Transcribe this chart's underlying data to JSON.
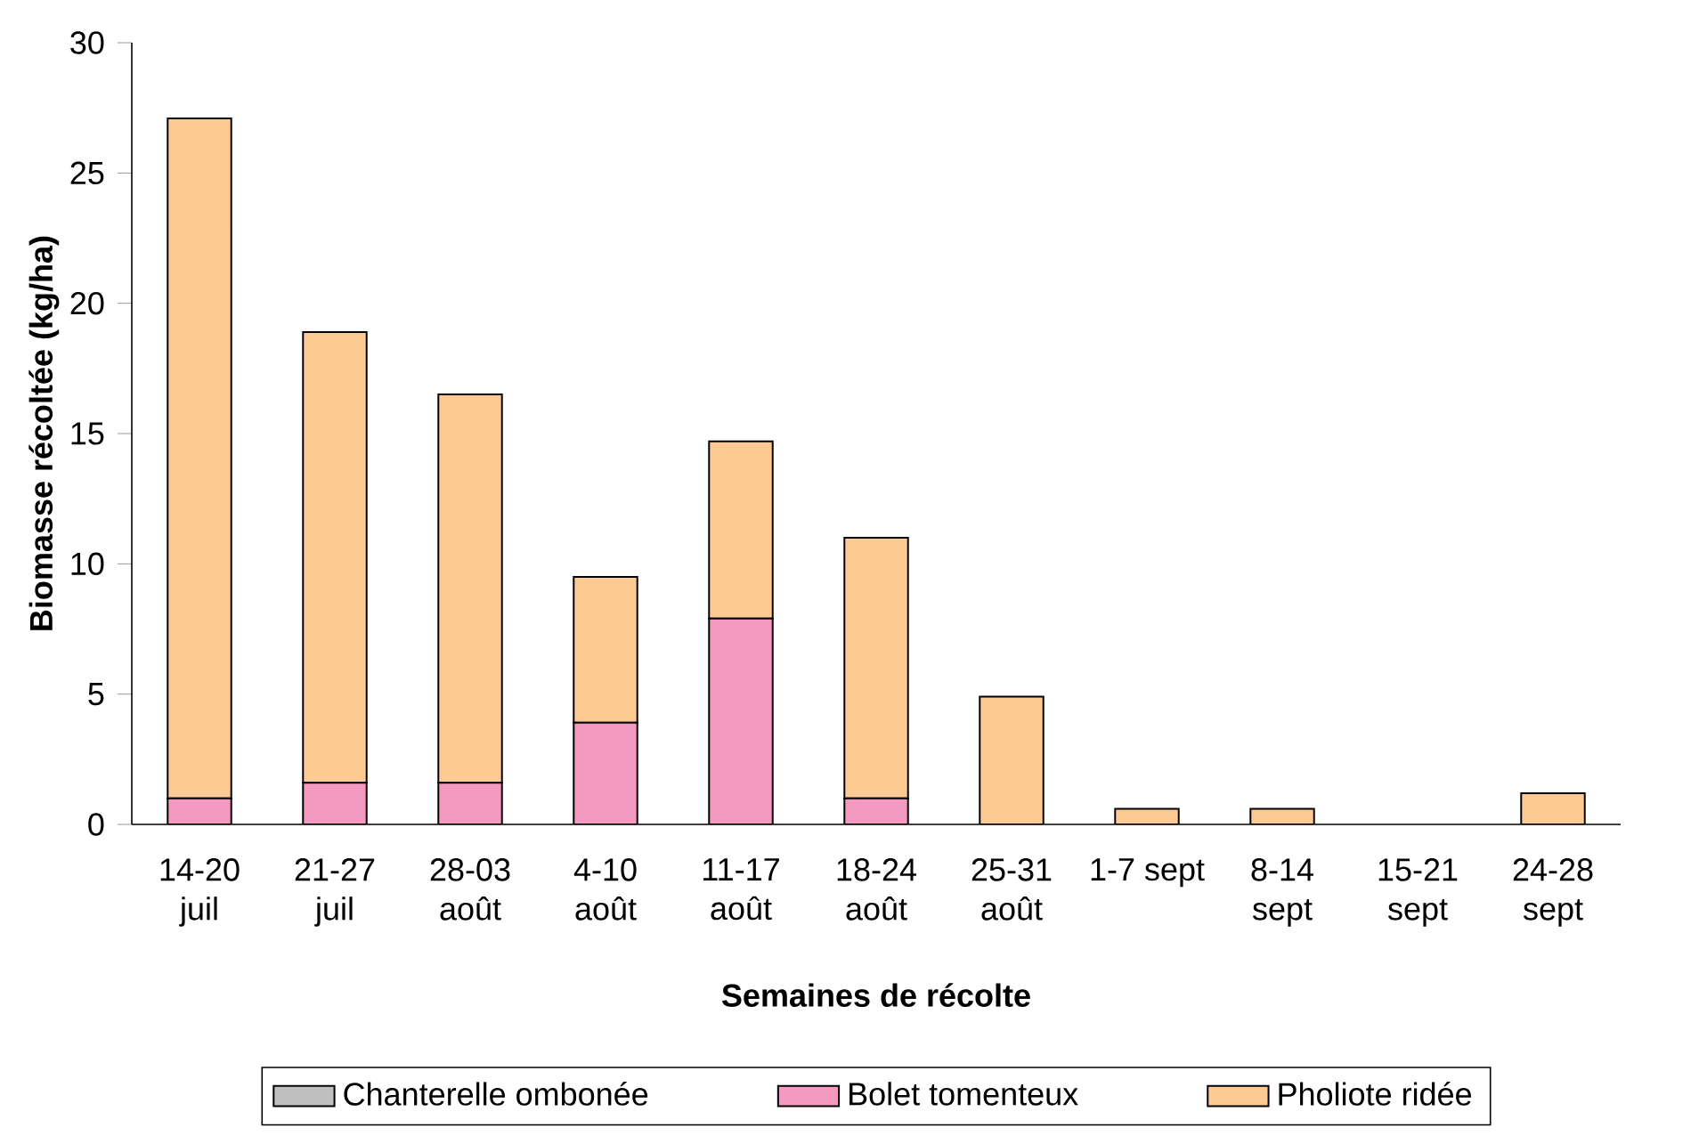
{
  "chart_data": {
    "type": "bar",
    "stacked": true,
    "xlabel": "Semaines de récolte",
    "ylabel": "Biomasse récoltée (kg/ha)",
    "categories": [
      "14-20 juil",
      "21-27 juil",
      "28-03 août",
      "4-10 août",
      "11-17 août",
      "18-24 août",
      "25-31 août",
      "1-7 sept",
      "8-14 sept",
      "15-21 sept",
      "24-28 sept"
    ],
    "series": [
      {
        "name": "Chanterelle ombonée",
        "color": "#c0c0c0",
        "values": [
          0,
          0,
          0,
          0,
          0,
          0,
          0,
          0,
          0,
          0,
          0
        ]
      },
      {
        "name": "Bolet tomenteux",
        "color": "#f49ac1",
        "values": [
          1.0,
          1.6,
          1.6,
          3.9,
          7.9,
          1.0,
          0,
          0,
          0,
          0,
          0
        ]
      },
      {
        "name": "Pholiote ridée",
        "color": "#fdca94",
        "values": [
          26.1,
          17.3,
          14.9,
          5.6,
          6.8,
          10.0,
          4.9,
          0.6,
          0.6,
          0,
          1.2
        ]
      }
    ],
    "ylim": [
      0,
      30
    ],
    "yticks": [
      0,
      5,
      10,
      15,
      20,
      25,
      30
    ],
    "grid": false,
    "legend": "bottom"
  }
}
